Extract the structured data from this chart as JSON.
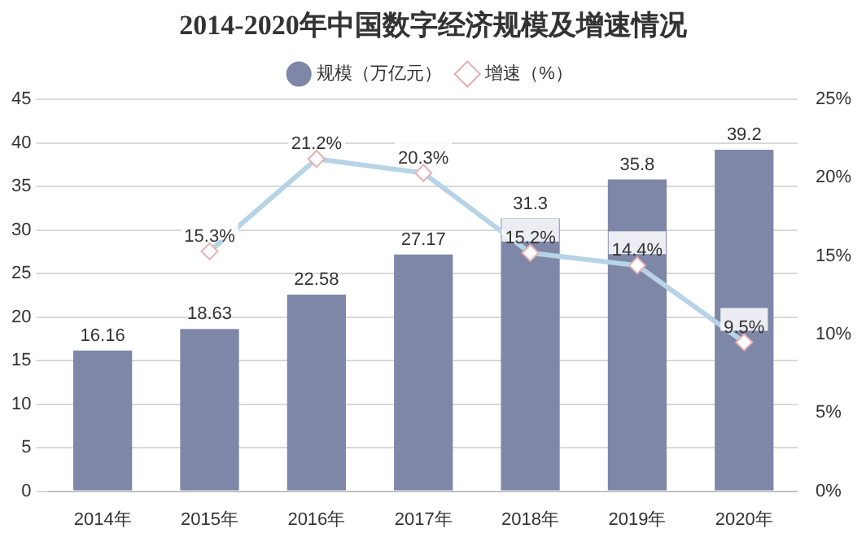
{
  "chart_data": {
    "type": "bar",
    "title": "2014-2020年中国数字经济规模及增速情况",
    "categories": [
      "2014年",
      "2015年",
      "2016年",
      "2017年",
      "2018年",
      "2019年",
      "2020年"
    ],
    "series": [
      {
        "name": "规模（万亿元）",
        "color": "#7e87a8",
        "values": [
          16.16,
          18.63,
          22.58,
          27.17,
          31.3,
          35.8,
          39.2
        ],
        "value_labels": [
          "16.16",
          "18.63",
          "22.58",
          "27.17",
          "31.3",
          "35.8",
          "39.2"
        ]
      },
      {
        "name": "增速（%）",
        "type": "line",
        "axis": "y2",
        "color": "#b7d3e6",
        "marker": "diamond",
        "values": [
          null,
          15.3,
          21.2,
          20.3,
          15.2,
          14.4,
          9.5
        ],
        "value_labels": [
          null,
          "15.3%",
          "21.2%",
          "20.3%",
          "15.2%",
          "14.4%",
          "9.5%"
        ]
      }
    ],
    "ylim": [
      0,
      45
    ],
    "yticks": [
      0,
      5,
      10,
      15,
      20,
      25,
      30,
      35,
      40,
      45
    ],
    "y2lim": [
      0,
      25
    ],
    "y2ticks": [
      {
        "value": 0,
        "label": "0%"
      },
      {
        "value": 5,
        "label": "5%"
      },
      {
        "value": 10,
        "label": "10%"
      },
      {
        "value": 15,
        "label": "15%"
      },
      {
        "value": 20,
        "label": "20%"
      },
      {
        "value": 25,
        "label": "25%"
      }
    ],
    "grid": "y",
    "legend": "top"
  }
}
